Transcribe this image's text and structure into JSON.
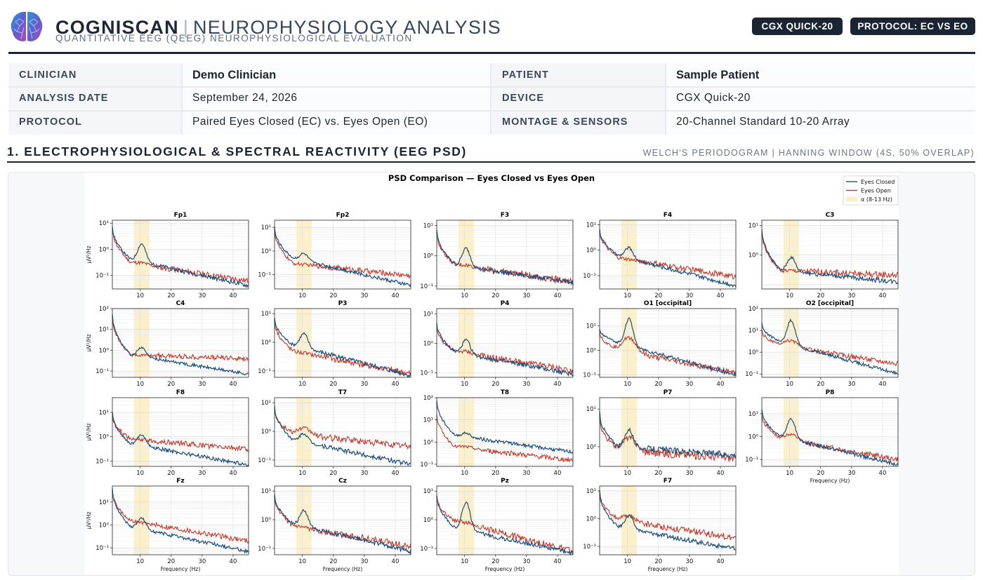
{
  "header": {
    "brand": "COGNISCAN",
    "subtitle": "NEUROPHYSIOLOGY ANALYSIS",
    "tagline": "QUANTITATIVE EEG (QEEG) NEUROPHYSIOLOGICAL EVALUATION",
    "badges": [
      "CGX QUICK-20",
      "PROTOCOL: EC VS EO"
    ]
  },
  "info": {
    "clinician_label": "CLINICIAN",
    "clinician": "Demo Clinician",
    "patient_label": "PATIENT",
    "patient": "Sample Patient",
    "date_label": "ANALYSIS DATE",
    "date": "September 24, 2026",
    "device_label": "DEVICE",
    "device": "CGX Quick-20",
    "protocol_label": "PROTOCOL",
    "protocol": "Paired Eyes Closed (EC) vs. Eyes Open (EO)",
    "montage_label": "MONTAGE & SENSORS",
    "montage": "20-Channel Standard 10-20 Array"
  },
  "section": {
    "title": "1. ELECTROPHYSIOLOGICAL & SPECTRAL REACTIVITY (EEG PSD)",
    "note": "WELCH'S PERIODOGRAM | HANNING WINDOW (4S, 50% OVERLAP)"
  },
  "colors": {
    "ec": "#1f4e79",
    "eo": "#c0392b",
    "alpha": "#fbf0c9",
    "dark": "#1b2433"
  },
  "chart_data": {
    "type": "line",
    "title": "PSD Comparison — Eyes Closed vs Eyes Open",
    "xlabel": "Frequency (Hz)",
    "ylabel": "µV²/Hz",
    "xlim": [
      1,
      45
    ],
    "xticks": [
      10,
      20,
      30,
      40
    ],
    "yscale": "log",
    "legend": {
      "placement": "top-right",
      "entries": [
        "Eyes Closed",
        "Eyes Open",
        "α (8-13 Hz)"
      ]
    },
    "alpha_band": [
      8,
      13
    ],
    "panels": [
      {
        "channel": "Fp1",
        "ylim": [
          0.03,
          13
        ],
        "yticks": [
          [
            "10¹",
            10
          ],
          [
            "10⁰",
            1
          ],
          [
            "10⁻¹",
            0.1
          ]
        ],
        "ec": {
          "start": 8,
          "trough": 0.4,
          "peak": 2.0,
          "end": 0.04
        },
        "eo": {
          "start": 7,
          "trough": 0.3,
          "peak": 0.35,
          "end": 0.06
        }
      },
      {
        "channel": "Fp2",
        "ylim": [
          0.025,
          20
        ],
        "yticks": [
          [
            "10¹",
            10
          ],
          [
            "10⁰",
            1
          ],
          [
            "10⁻¹",
            0.1
          ]
        ],
        "ec": {
          "start": 10,
          "trough": 0.5,
          "peak": 1.0,
          "end": 0.035
        },
        "eo": {
          "start": 8,
          "trough": 0.3,
          "peak": 0.3,
          "end": 0.09
        }
      },
      {
        "channel": "F3",
        "ylim": [
          0.08,
          15
        ],
        "yticks": [
          [
            "10¹",
            10
          ],
          [
            "10⁰",
            1
          ],
          [
            "10⁻¹",
            0.1
          ]
        ],
        "ec": {
          "start": 7,
          "trough": 0.5,
          "peak": 2.0,
          "end": 0.13
        },
        "eo": {
          "start": 6,
          "trough": 0.5,
          "peak": 0.55,
          "end": 0.14
        }
      },
      {
        "channel": "F4",
        "ylim": [
          0.03,
          15
        ],
        "yticks": [
          [
            "10¹",
            10
          ],
          [
            "10⁰",
            1
          ],
          [
            "10⁻¹",
            0.1
          ]
        ],
        "ec": {
          "start": 7,
          "trough": 0.6,
          "peak": 1.6,
          "end": 0.04
        },
        "eo": {
          "start": 6,
          "trough": 0.5,
          "peak": 0.5,
          "end": 0.09
        }
      },
      {
        "channel": "C3",
        "ylim": [
          0.07,
          15
        ],
        "yticks": [
          [
            "10¹",
            10
          ],
          [
            "10⁰",
            1
          ]
        ],
        "ec": {
          "start": 8,
          "trough": 0.3,
          "peak": 0.9,
          "end": 0.12
        },
        "eo": {
          "start": 6,
          "trough": 0.3,
          "peak": 0.3,
          "end": 0.2
        }
      },
      {
        "channel": "C4",
        "ylim": [
          0.05,
          100
        ],
        "yticks": [
          [
            "10²",
            100
          ],
          [
            "10¹",
            10
          ],
          [
            "10⁰",
            1
          ],
          [
            "10⁻¹",
            0.1
          ]
        ],
        "ec": {
          "start": 50,
          "trough": 0.6,
          "peak": 1.6,
          "end": 0.07
        },
        "eo": {
          "start": 40,
          "trough": 0.6,
          "peak": 0.6,
          "end": 0.4
        }
      },
      {
        "channel": "P3",
        "ylim": [
          0.06,
          15
        ],
        "yticks": [
          [
            "10¹",
            10
          ],
          [
            "10⁰",
            1
          ],
          [
            "10⁻¹",
            0.1
          ]
        ],
        "ec": {
          "start": 7,
          "trough": 0.8,
          "peak": 2.5,
          "end": 0.07
        },
        "eo": {
          "start": 6,
          "trough": 0.5,
          "peak": 0.5,
          "end": 0.08
        }
      },
      {
        "channel": "P4",
        "ylim": [
          0.07,
          15
        ],
        "yticks": [
          [
            "10¹",
            10
          ],
          [
            "10⁰",
            1
          ],
          [
            "10⁻¹",
            0.1
          ]
        ],
        "ec": {
          "start": 5,
          "trough": 0.5,
          "peak": 1.5,
          "end": 0.09
        },
        "eo": {
          "start": 4,
          "trough": 0.5,
          "peak": 0.6,
          "end": 0.12
        }
      },
      {
        "channel": "O1 [occipital]",
        "ylim": [
          0.08,
          50
        ],
        "yticks": [
          [
            "10¹",
            10
          ],
          [
            "10⁰",
            1
          ],
          [
            "10⁻¹",
            0.1
          ]
        ],
        "ec": {
          "start": 8,
          "trough": 2.0,
          "peak": 25,
          "end": 0.1
        },
        "eo": {
          "start": 6,
          "trough": 1.0,
          "peak": 4,
          "end": 0.12
        }
      },
      {
        "channel": "O2 [occipital]",
        "ylim": [
          0.07,
          100
        ],
        "yticks": [
          [
            "10²",
            100
          ],
          [
            "10¹",
            10
          ],
          [
            "10⁰",
            1
          ],
          [
            "10⁻¹",
            0.1
          ]
        ],
        "ec": {
          "start": 20,
          "trough": 3.0,
          "peak": 40,
          "end": 0.1
        },
        "eo": {
          "start": 10,
          "trough": 2.0,
          "peak": 4,
          "end": 0.3
        }
      },
      {
        "channel": "F8",
        "ylim": [
          0.06,
          40
        ],
        "yticks": [
          [
            "10¹",
            10
          ],
          [
            "10⁰",
            1
          ],
          [
            "10⁻¹",
            0.1
          ]
        ],
        "ec": {
          "start": 10,
          "trough": 0.5,
          "peak": 1.5,
          "end": 0.07
        },
        "eo": {
          "start": 8,
          "trough": 0.8,
          "peak": 0.8,
          "end": 0.3
        }
      },
      {
        "channel": "T7",
        "ylim": [
          0.06,
          15
        ],
        "yticks": [
          [
            "10¹",
            10
          ],
          [
            "10⁰",
            1
          ],
          [
            "10⁻¹",
            0.1
          ]
        ],
        "ec": {
          "start": 8,
          "trough": 0.5,
          "peak": 1.0,
          "end": 0.07
        },
        "eo": {
          "start": 6,
          "trough": 0.8,
          "peak": 1.4,
          "end": 0.3
        }
      },
      {
        "channel": "T8",
        "ylim": [
          0.08,
          100
        ],
        "yticks": [
          [
            "10²",
            100
          ],
          [
            "10¹",
            10
          ],
          [
            "10⁰",
            1
          ],
          [
            "10⁻¹",
            0.1
          ]
        ],
        "ec": {
          "start": 80,
          "trough": 2.0,
          "peak": 3,
          "end": 0.35
        },
        "eo": {
          "start": 20,
          "trough": 0.6,
          "peak": 0.7,
          "end": 0.15
        }
      },
      {
        "channel": "P7",
        "ylim": [
          0.3,
          20
        ],
        "yticks": [
          [
            "10¹",
            10
          ],
          [
            "10⁰",
            1
          ]
        ],
        "ec": {
          "start": 8,
          "trough": 1.0,
          "peak": 3,
          "end": 0.6
        },
        "eo": {
          "start": 6,
          "trough": 0.8,
          "peak": 1.8,
          "end": 0.5
        }
      },
      {
        "channel": "P8",
        "ylim": [
          0.05,
          50
        ],
        "yticks": [
          [
            "10¹",
            10
          ],
          [
            "10⁰",
            1
          ],
          [
            "10⁻¹",
            0.1
          ]
        ],
        "ec": {
          "start": 15,
          "trough": 1.0,
          "peak": 8,
          "end": 0.06
        },
        "eo": {
          "start": 10,
          "trough": 0.8,
          "peak": 1.5,
          "end": 0.1
        }
      },
      {
        "channel": "Fz",
        "ylim": [
          0.05,
          50
        ],
        "yticks": [
          [
            "10¹",
            10
          ],
          [
            "10⁰",
            1
          ],
          [
            "10⁻¹",
            0.1
          ]
        ],
        "ec": {
          "start": 40,
          "trough": 0.8,
          "peak": 2.5,
          "end": 0.07
        },
        "eo": {
          "start": 30,
          "trough": 1.5,
          "peak": 1.5,
          "end": 0.2
        }
      },
      {
        "channel": "Cz",
        "ylim": [
          0.06,
          15
        ],
        "yticks": [
          [
            "10¹",
            10
          ],
          [
            "10⁰",
            1
          ],
          [
            "10⁻¹",
            0.1
          ]
        ],
        "ec": {
          "start": 8,
          "trough": 0.7,
          "peak": 2.5,
          "end": 0.08
        },
        "eo": {
          "start": 7,
          "trough": 0.6,
          "peak": 0.6,
          "end": 0.12
        }
      },
      {
        "channel": "Pz",
        "ylim": [
          0.06,
          15
        ],
        "yticks": [
          [
            "10¹",
            10
          ],
          [
            "10⁰",
            1
          ],
          [
            "10⁻¹",
            0.1
          ]
        ],
        "ec": {
          "start": 8,
          "trough": 0.5,
          "peak": 5,
          "end": 0.07
        },
        "eo": {
          "start": 6,
          "trough": 0.9,
          "peak": 1.0,
          "end": 0.08
        }
      },
      {
        "channel": "F7",
        "ylim": [
          0.05,
          15
        ],
        "yticks": [
          [
            "10¹",
            10
          ],
          [
            "10⁰",
            1
          ],
          [
            "10⁻¹",
            0.1
          ]
        ],
        "ec": {
          "start": 10,
          "trough": 0.5,
          "peak": 1.6,
          "end": 0.08
        },
        "eo": {
          "start": 8,
          "trough": 0.9,
          "peak": 1.4,
          "end": 0.2
        }
      }
    ]
  }
}
